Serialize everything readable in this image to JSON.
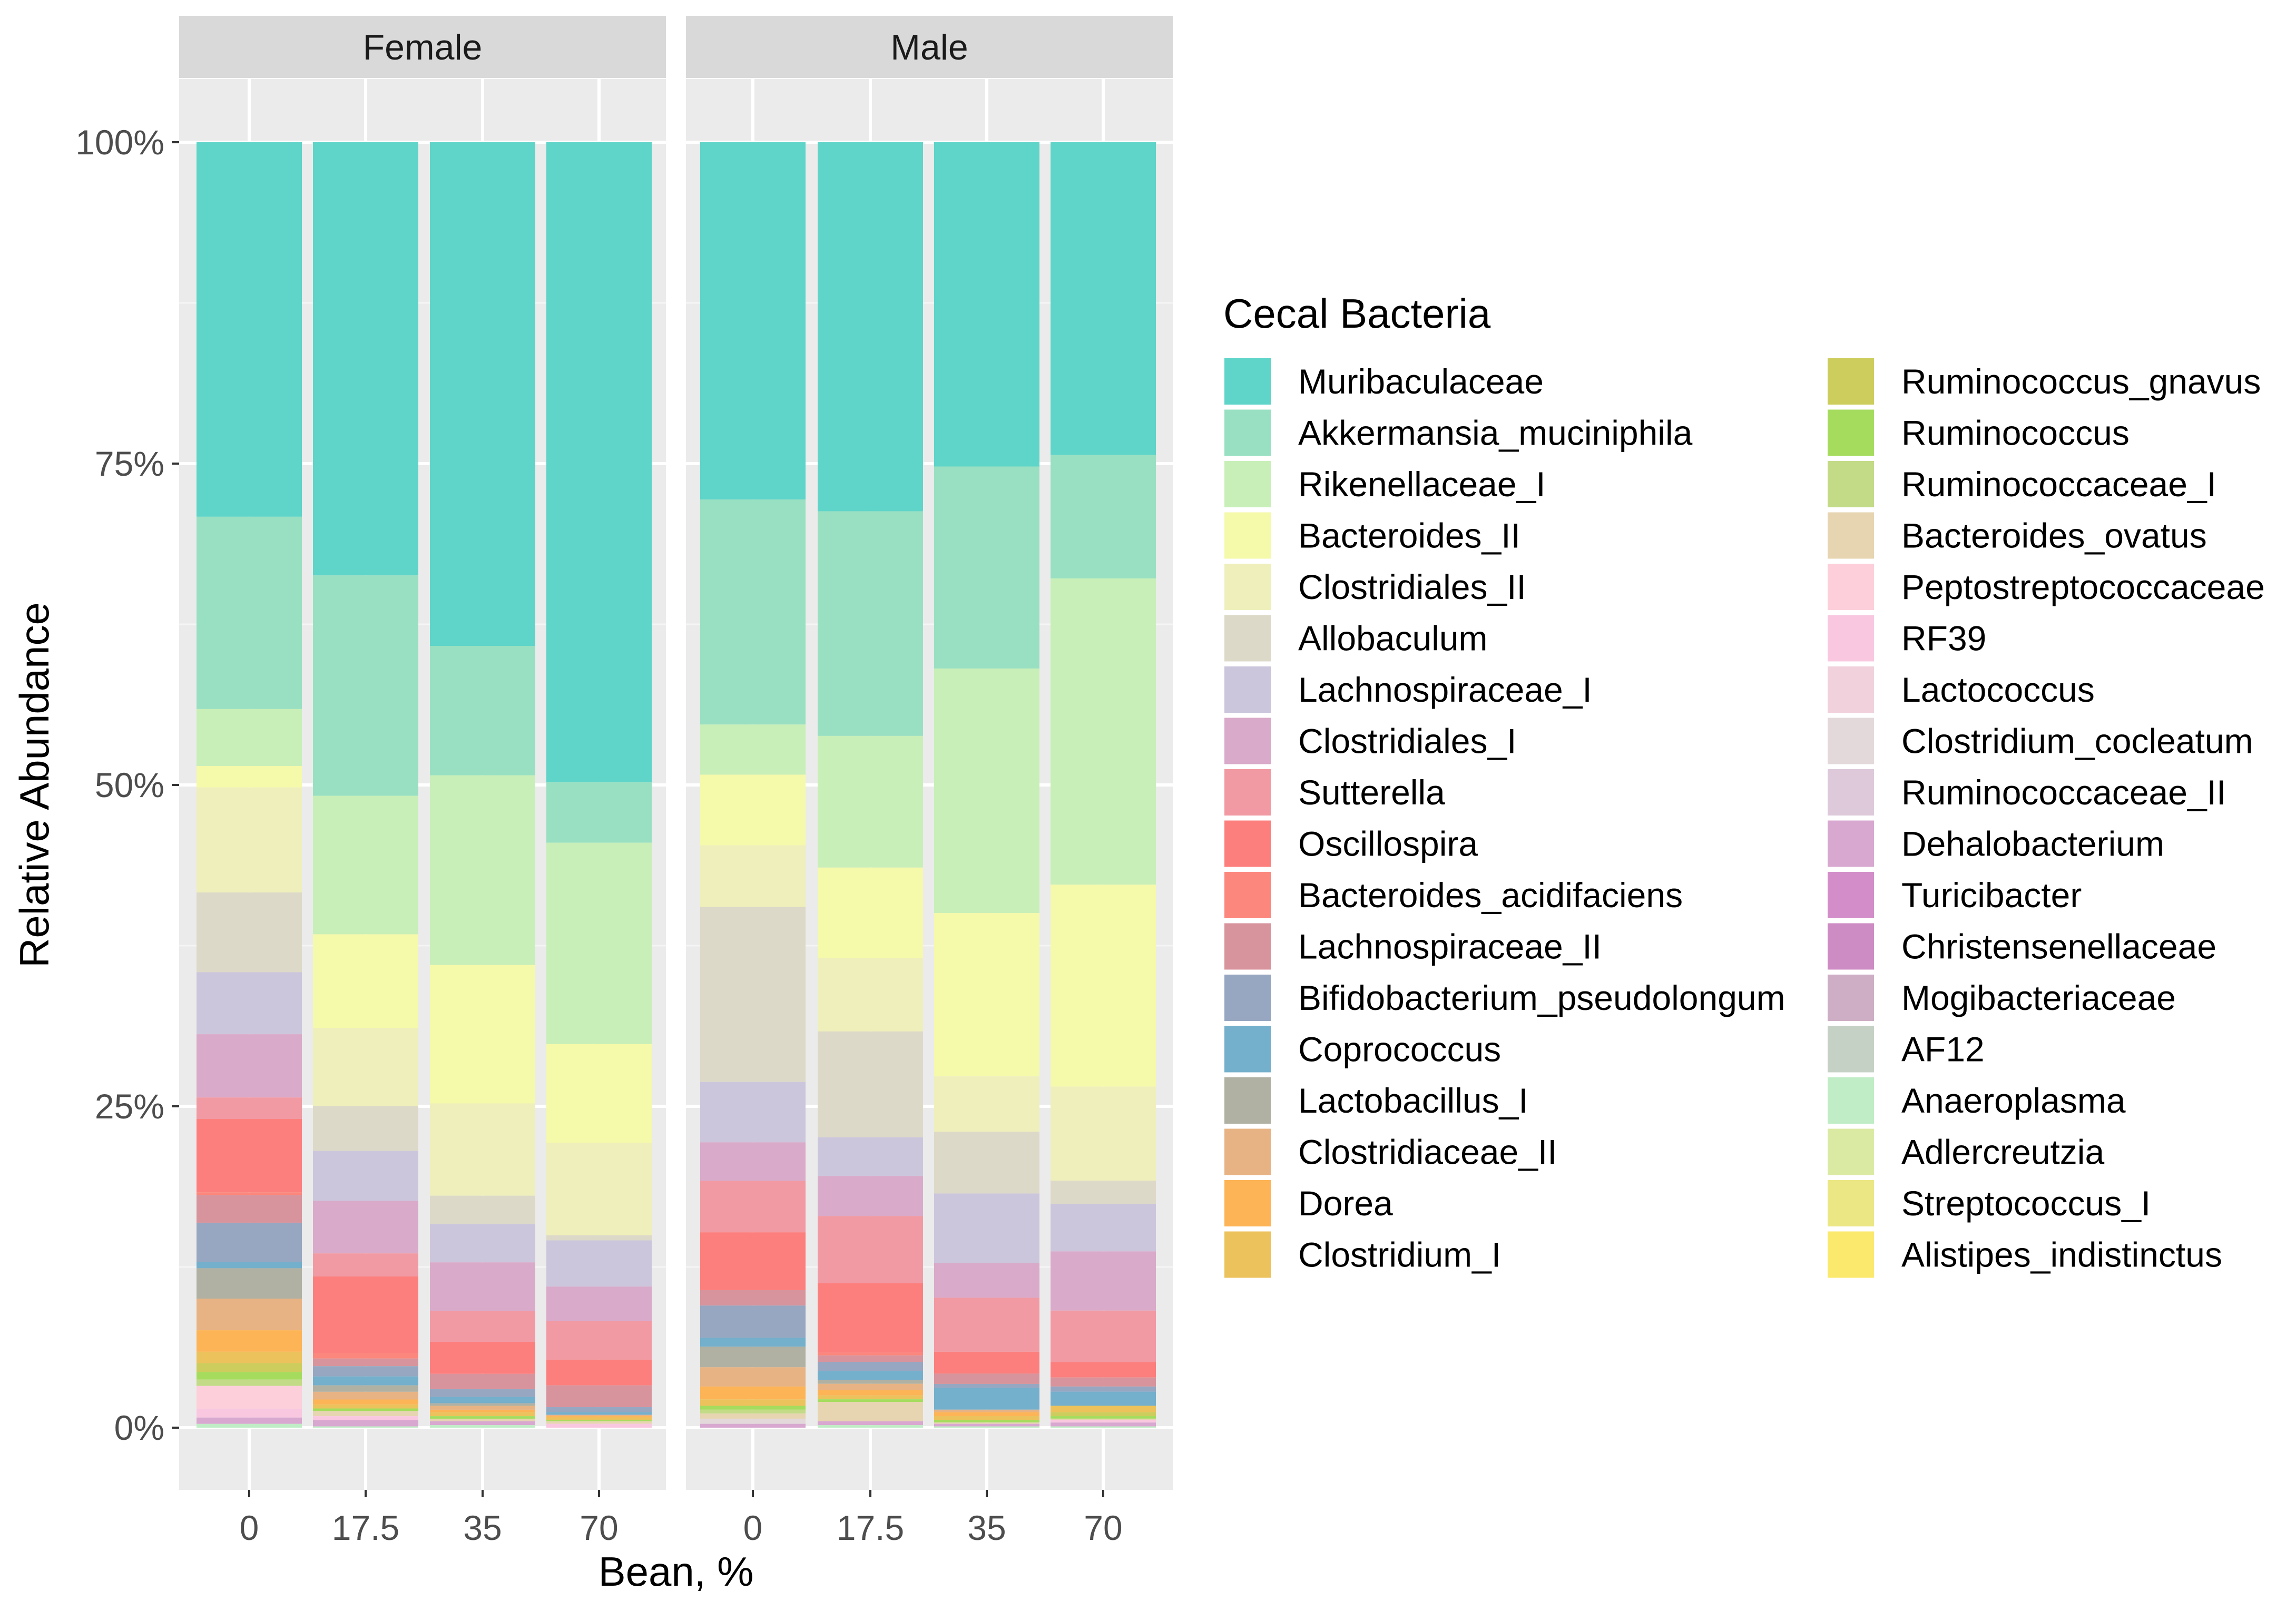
{
  "chart_data": {
    "type": "bar",
    "stacked": true,
    "ylabel": "Relative Abundance",
    "xlabel": "Bean, %",
    "yticks": [
      "0%",
      "25%",
      "50%",
      "75%",
      "100%"
    ],
    "ylim": [
      0,
      1
    ],
    "categories": [
      "0",
      "17.5",
      "35",
      "70"
    ],
    "facets": [
      "Female",
      "Male"
    ],
    "legend": {
      "title": "Cecal Bacteria",
      "placement": "right",
      "entries": [
        {
          "name": "Muribaculaceae",
          "color": "#5fd4c8"
        },
        {
          "name": "Akkermansia_muciniphila",
          "color": "#99e0c2"
        },
        {
          "name": "Rikenellaceae_I",
          "color": "#c8efb8"
        },
        {
          "name": "Bacteroides_II",
          "color": "#f5f9aa"
        },
        {
          "name": "Clostridiales_II",
          "color": "#efefbb"
        },
        {
          "name": "Allobaculum",
          "color": "#ddd9c8"
        },
        {
          "name": "Lachnospiraceae_I",
          "color": "#ccc6dc"
        },
        {
          "name": "Clostridiales_I",
          "color": "#d9aac9"
        },
        {
          "name": "Sutterella",
          "color": "#f19aa3"
        },
        {
          "name": "Oscillospira",
          "color": "#fc7f7d"
        },
        {
          "name": "Bacteroides_acidifaciens",
          "color": "#fc877c"
        },
        {
          "name": "Lachnospiraceae_II",
          "color": "#d8949c"
        },
        {
          "name": "Bifidobacterium_pseudolongum",
          "color": "#97a6c1"
        },
        {
          "name": "Coprococcus",
          "color": "#74afcc"
        },
        {
          "name": "Lactobacillus_I",
          "color": "#b0b1a2"
        },
        {
          "name": "Clostridiaceae_II",
          "color": "#e8b384"
        },
        {
          "name": "Dorea",
          "color": "#fcb457"
        },
        {
          "name": "Clostridium_I",
          "color": "#ecc25c"
        },
        {
          "name": "Ruminococcus_gnavus",
          "color": "#cdcd5e"
        },
        {
          "name": "Ruminococcus",
          "color": "#a6dc5e"
        },
        {
          "name": "Ruminococcaceae_I",
          "color": "#c3da86"
        },
        {
          "name": "Bacteroides_ovatus",
          "color": "#e7d5b1"
        },
        {
          "name": "Peptostreptococcaceae",
          "color": "#fccfdb"
        },
        {
          "name": "RF39",
          "color": "#f9c8e0"
        },
        {
          "name": "Lactococcus",
          "color": "#f1d2dc"
        },
        {
          "name": "Clostridium_cocleatum",
          "color": "#e3d9db"
        },
        {
          "name": "Ruminococcaceae_II",
          "color": "#ddc9da"
        },
        {
          "name": "Dehalobacterium",
          "color": "#d8a8d0"
        },
        {
          "name": "Turicibacter",
          "color": "#d38dc9"
        },
        {
          "name": "Christensenellaceae",
          "color": "#ce8cc4"
        },
        {
          "name": "Mogibacteriaceae",
          "color": "#cdaec4"
        },
        {
          "name": "AF12",
          "color": "#c6d1c5"
        },
        {
          "name": "Anaeroplasma",
          "color": "#c0ecc6"
        },
        {
          "name": "Adlercreutzia",
          "color": "#dbeaa3"
        },
        {
          "name": "Streptococcus_I",
          "color": "#ebe784"
        },
        {
          "name": "Alistipes_indistinctus",
          "color": "#fbe96d"
        }
      ]
    },
    "panels": [
      {
        "facet": "Female",
        "bars": [
          {
            "x": "0",
            "segments": [
              [
                "Muribaculaceae",
                0.296
              ],
              [
                "Akkermansia_muciniphila",
                0.152
              ],
              [
                "Rikenellaceae_I",
                0.045
              ],
              [
                "Bacteroides_II",
                0.017
              ],
              [
                "Clostridiales_II",
                0.083
              ],
              [
                "Allobaculum",
                0.063
              ],
              [
                "Lachnospiraceae_I",
                0.049
              ],
              [
                "Clostridiales_I",
                0.05
              ],
              [
                "Sutterella",
                0.017
              ],
              [
                "Oscillospira",
                0.058
              ],
              [
                "Bacteroides_acidifaciens",
                0.002
              ],
              [
                "Lachnospiraceae_II",
                0.022
              ],
              [
                "Bifidobacterium_pseudolongum",
                0.031
              ],
              [
                "Coprococcus",
                0.005
              ],
              [
                "Lactobacillus_I",
                0.024
              ],
              [
                "Clostridiaceae_II",
                0.025
              ],
              [
                "Dorea",
                0.017
              ],
              [
                "Clostridium_I",
                0.009
              ],
              [
                "Ruminococcus_gnavus",
                0.007
              ],
              [
                "Ruminococcus",
                0.006
              ],
              [
                "Ruminococcaceae_I",
                0.005
              ],
              [
                "Peptostreptococcaceae",
                0.018
              ],
              [
                "RF39",
                0.007
              ],
              [
                "Dehalobacterium",
                0.005
              ],
              [
                "Anaeroplasma",
                0.003
              ]
            ]
          },
          {
            "x": "17.5",
            "segments": [
              [
                "Muribaculaceae",
                0.338
              ],
              [
                "Akkermansia_muciniphila",
                0.172
              ],
              [
                "Rikenellaceae_I",
                0.108
              ],
              [
                "Bacteroides_II",
                0.073
              ],
              [
                "Clostridiales_II",
                0.061
              ],
              [
                "Allobaculum",
                0.035
              ],
              [
                "Lachnospiraceae_I",
                0.039
              ],
              [
                "Clostridiales_I",
                0.041
              ],
              [
                "Sutterella",
                0.018
              ],
              [
                "Oscillospira",
                0.06
              ],
              [
                "Bacteroides_acidifaciens",
                0.004
              ],
              [
                "Lachnospiraceae_II",
                0.006
              ],
              [
                "Bifidobacterium_pseudolongum",
                0.008
              ],
              [
                "Coprococcus",
                0.007
              ],
              [
                "Lactobacillus_I",
                0.005
              ],
              [
                "Clostridiaceae_II",
                0.006
              ],
              [
                "Dorea",
                0.004
              ],
              [
                "Clostridium_I",
                0.003
              ],
              [
                "Ruminococcus",
                0.002
              ],
              [
                "Bacteroides_ovatus",
                0.004
              ],
              [
                "RF39",
                0.003
              ],
              [
                "Dehalobacterium",
                0.005
              ],
              [
                "Anaeroplasma",
                0.001
              ]
            ]
          },
          {
            "x": "35",
            "segments": [
              [
                "Muribaculaceae",
                0.393
              ],
              [
                "Akkermansia_muciniphila",
                0.101
              ],
              [
                "Rikenellaceae_I",
                0.148
              ],
              [
                "Bacteroides_II",
                0.108
              ],
              [
                "Clostridiales_II",
                0.072
              ],
              [
                "Allobaculum",
                0.022
              ],
              [
                "Lachnospiraceae_I",
                0.03
              ],
              [
                "Clostridiales_I",
                0.038
              ],
              [
                "Sutterella",
                0.024
              ],
              [
                "Oscillospira",
                0.025
              ],
              [
                "Lachnospiraceae_II",
                0.012
              ],
              [
                "Bifidobacterium_pseudolongum",
                0.006
              ],
              [
                "Coprococcus",
                0.005
              ],
              [
                "Lactobacillus_I",
                0.002
              ],
              [
                "Clostridiaceae_II",
                0.003
              ],
              [
                "Dorea",
                0.002
              ],
              [
                "Clostridium_I",
                0.003
              ],
              [
                "Ruminococcus",
                0.002
              ],
              [
                "Bacteroides_ovatus",
                0.002
              ],
              [
                "Dehalobacterium",
                0.003
              ],
              [
                "Anaeroplasma",
                0.002
              ]
            ]
          },
          {
            "x": "70",
            "segments": [
              [
                "Muribaculaceae",
                0.499
              ],
              [
                "Akkermansia_muciniphila",
                0.047
              ],
              [
                "Rikenellaceae_I",
                0.157
              ],
              [
                "Bacteroides_II",
                0.077
              ],
              [
                "Clostridiales_II",
                0.072
              ],
              [
                "Allobaculum",
                0.004
              ],
              [
                "Lachnospiraceae_I",
                0.036
              ],
              [
                "Clostridiales_I",
                0.027
              ],
              [
                "Sutterella",
                0.03
              ],
              [
                "Oscillospira",
                0.02
              ],
              [
                "Lachnospiraceae_II",
                0.017
              ],
              [
                "Bifidobacterium_pseudolongum",
                0.004
              ],
              [
                "Coprococcus",
                0.002
              ],
              [
                "Clostridiaceae_II",
                0.001
              ],
              [
                "Dorea",
                0.001
              ],
              [
                "Clostridium_I",
                0.002
              ],
              [
                "Ruminococcus",
                0.001
              ],
              [
                "Bacteroides_ovatus",
                0.002
              ],
              [
                "RF39",
                0.003
              ]
            ]
          }
        ]
      },
      {
        "facet": "Male",
        "bars": [
          {
            "x": "0",
            "segments": [
              [
                "Muribaculaceae",
                0.278
              ],
              [
                "Akkermansia_muciniphila",
                0.175
              ],
              [
                "Rikenellaceae_I",
                0.039
              ],
              [
                "Bacteroides_II",
                0.055
              ],
              [
                "Clostridiales_II",
                0.048
              ],
              [
                "Allobaculum",
                0.136
              ],
              [
                "Lachnospiraceae_I",
                0.047
              ],
              [
                "Clostridiales_I",
                0.03
              ],
              [
                "Sutterella",
                0.04
              ],
              [
                "Oscillospira",
                0.045
              ],
              [
                "Lachnospiraceae_II",
                0.012
              ],
              [
                "Bifidobacterium_pseudolongum",
                0.025
              ],
              [
                "Coprococcus",
                0.007
              ],
              [
                "Lactobacillus_I",
                0.016
              ],
              [
                "Clostridiaceae_II",
                0.015
              ],
              [
                "Dorea",
                0.01
              ],
              [
                "Clostridium_I",
                0.005
              ],
              [
                "Ruminococcus",
                0.003
              ],
              [
                "Ruminococcaceae_I",
                0.003
              ],
              [
                "Bacteroides_ovatus",
                0.004
              ],
              [
                "Clostridium_cocleatum",
                0.004
              ],
              [
                "Dehalobacterium",
                0.003
              ]
            ]
          },
          {
            "x": "17.5",
            "segments": [
              [
                "Muribaculaceae",
                0.286
              ],
              [
                "Akkermansia_muciniphila",
                0.174
              ],
              [
                "Rikenellaceae_I",
                0.102
              ],
              [
                "Bacteroides_II",
                0.07
              ],
              [
                "Clostridiales_II",
                0.057
              ],
              [
                "Allobaculum",
                0.082
              ],
              [
                "Lachnospiraceae_I",
                0.03
              ],
              [
                "Clostridiales_I",
                0.031
              ],
              [
                "Sutterella",
                0.052
              ],
              [
                "Oscillospira",
                0.054
              ],
              [
                "Bacteroides_acidifaciens",
                0.002
              ],
              [
                "Lachnospiraceae_II",
                0.005
              ],
              [
                "Bifidobacterium_pseudolongum",
                0.007
              ],
              [
                "Coprococcus",
                0.007
              ],
              [
                "Lactobacillus_I",
                0.003
              ],
              [
                "Clostridiaceae_II",
                0.005
              ],
              [
                "Dorea",
                0.004
              ],
              [
                "Clostridium_I",
                0.003
              ],
              [
                "Ruminococcus",
                0.002
              ],
              [
                "Bacteroides_ovatus",
                0.015
              ],
              [
                "Dehalobacterium",
                0.003
              ],
              [
                "Anaeroplasma",
                0.002
              ]
            ]
          },
          {
            "x": "35",
            "segments": [
              [
                "Muribaculaceae",
                0.252
              ],
              [
                "Akkermansia_muciniphila",
                0.157
              ],
              [
                "Rikenellaceae_I",
                0.19
              ],
              [
                "Bacteroides_II",
                0.127
              ],
              [
                "Clostridiales_II",
                0.043
              ],
              [
                "Allobaculum",
                0.048
              ],
              [
                "Lachnospiraceae_I",
                0.054
              ],
              [
                "Clostridiales_I",
                0.027
              ],
              [
                "Sutterella",
                0.042
              ],
              [
                "Oscillospira",
                0.017
              ],
              [
                "Lachnospiraceae_II",
                0.008
              ],
              [
                "Bifidobacterium_pseudolongum",
                0.003
              ],
              [
                "Coprococcus",
                0.017
              ],
              [
                "Clostridiaceae_II",
                0.002
              ],
              [
                "Dorea",
                0.003
              ],
              [
                "Clostridium_I",
                0.003
              ],
              [
                "Ruminococcus",
                0.002
              ],
              [
                "Bacteroides_ovatus",
                0.001
              ],
              [
                "Dehalobacterium",
                0.002
              ],
              [
                "Anaeroplasma",
                0.001
              ]
            ]
          },
          {
            "x": "70",
            "segments": [
              [
                "Muribaculaceae",
                0.243
              ],
              [
                "Akkermansia_muciniphila",
                0.096
              ],
              [
                "Rikenellaceae_I",
                0.238
              ],
              [
                "Bacteroides_II",
                0.157
              ],
              [
                "Clostridiales_II",
                0.073
              ],
              [
                "Allobaculum",
                0.018
              ],
              [
                "Lachnospiraceae_I",
                0.037
              ],
              [
                "Clostridiales_I",
                0.046
              ],
              [
                "Sutterella",
                0.04
              ],
              [
                "Oscillospira",
                0.012
              ],
              [
                "Lachnospiraceae_II",
                0.007
              ],
              [
                "Bifidobacterium_pseudolongum",
                0.004
              ],
              [
                "Coprococcus",
                0.011
              ],
              [
                "Clostridium_I",
                0.005
              ],
              [
                "Ruminococcus_gnavus",
                0.003
              ],
              [
                "Ruminococcus",
                0.002
              ],
              [
                "Bacteroides_ovatus",
                0.001
              ],
              [
                "RF39",
                0.002
              ],
              [
                "Dehalobacterium",
                0.003
              ],
              [
                "Anaeroplasma",
                0.001
              ]
            ]
          }
        ]
      }
    ]
  }
}
